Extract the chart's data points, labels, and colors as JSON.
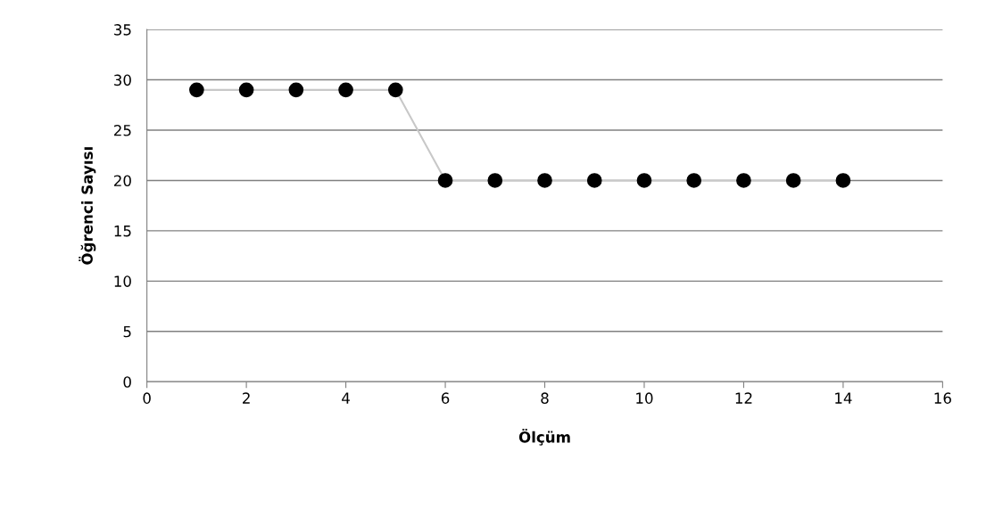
{
  "chart_data": {
    "type": "line",
    "xlabel": "Ölçüm",
    "ylabel": "Öğrenci Sayısı",
    "x": [
      1,
      2,
      3,
      4,
      5,
      6,
      7,
      8,
      9,
      10,
      11,
      12,
      13,
      14
    ],
    "series": [
      {
        "color": "#c8c8c8",
        "values": [
          29,
          29,
          29,
          29,
          29,
          20,
          20,
          20,
          20,
          20,
          20,
          20,
          20,
          20
        ]
      }
    ],
    "xlim": [
      0,
      16
    ],
    "xticks": [
      0,
      2,
      4,
      6,
      8,
      10,
      12,
      14,
      16
    ],
    "ylim": [
      0,
      35
    ],
    "yticks": [
      0,
      5,
      10,
      15,
      20,
      25,
      30,
      35
    ],
    "grid": "y",
    "marker": "circle",
    "line_style": "solid"
  }
}
